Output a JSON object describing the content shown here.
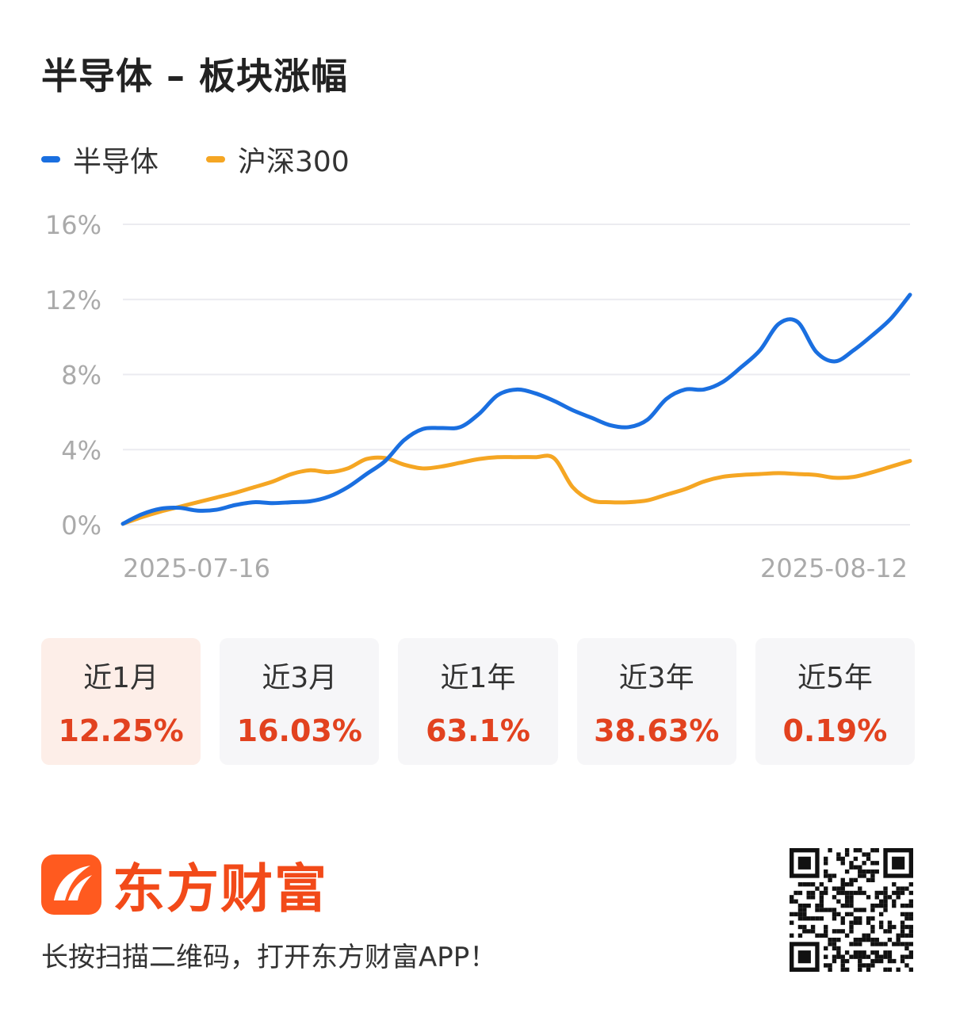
{
  "header": {
    "title": "半导体 – 板块涨幅"
  },
  "legend": [
    {
      "name": "半导体",
      "color": "#1a6fe0"
    },
    {
      "name": "沪深300",
      "color": "#f5a623"
    }
  ],
  "chart_data": {
    "type": "line",
    "y_ticks": [
      "16%",
      "12%",
      "8%",
      "4%",
      "0%"
    ],
    "y_tick_values": [
      16,
      12,
      8,
      4,
      0
    ],
    "ylim": [
      0,
      16
    ],
    "x_start_label": "2025-07-16",
    "x_end_label": "2025-08-12",
    "grid": true,
    "legend_position": "top-left",
    "series": [
      {
        "name": "半导体",
        "color": "#1a6fe0",
        "values": [
          0.05,
          0.55,
          0.85,
          0.9,
          0.75,
          0.8,
          1.05,
          1.2,
          1.15,
          1.2,
          1.25,
          1.5,
          2.0,
          2.7,
          3.4,
          4.5,
          5.1,
          5.15,
          5.2,
          5.9,
          6.9,
          7.2,
          7.0,
          6.6,
          6.1,
          5.7,
          5.3,
          5.2,
          5.6,
          6.7,
          7.2,
          7.2,
          7.6,
          8.4,
          9.3,
          10.7,
          10.8,
          9.2,
          8.7,
          9.3,
          10.1,
          11.0,
          12.25
        ]
      },
      {
        "name": "沪深300",
        "color": "#f5a623",
        "values": [
          0.05,
          0.4,
          0.7,
          0.95,
          1.2,
          1.45,
          1.7,
          2.0,
          2.3,
          2.7,
          2.9,
          2.8,
          3.0,
          3.5,
          3.55,
          3.2,
          3.0,
          3.1,
          3.3,
          3.5,
          3.6,
          3.6,
          3.6,
          3.55,
          2.0,
          1.3,
          1.2,
          1.2,
          1.3,
          1.6,
          1.9,
          2.3,
          2.55,
          2.65,
          2.7,
          2.75,
          2.7,
          2.65,
          2.5,
          2.55,
          2.8,
          3.1,
          3.4
        ]
      }
    ]
  },
  "periods": [
    {
      "label": "近1月",
      "value": "12.25%",
      "active": true
    },
    {
      "label": "近3月",
      "value": "16.03%",
      "active": false
    },
    {
      "label": "近1年",
      "value": "63.1%",
      "active": false
    },
    {
      "label": "近3年",
      "value": "38.63%",
      "active": false
    },
    {
      "label": "近5年",
      "value": "0.19%",
      "active": false
    }
  ],
  "brand": {
    "name": "东方财富",
    "logo_color": "#ff5a1f"
  },
  "footer": {
    "text": "长按扫描二维码，打开东方财富APP！"
  },
  "qr_icon": "qr-code-icon"
}
